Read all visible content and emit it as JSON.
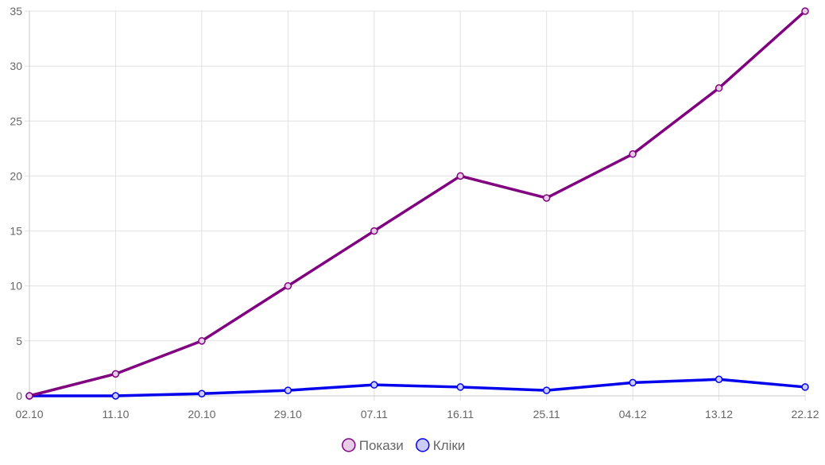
{
  "chart_data": {
    "type": "line",
    "categories": [
      "02.10",
      "11.10",
      "20.10",
      "29.10",
      "07.11",
      "16.11",
      "25.11",
      "04.12",
      "13.12",
      "22.12"
    ],
    "series": [
      {
        "name": "Покази",
        "values": [
          0,
          2,
          5,
          10,
          15,
          20,
          18,
          22,
          28,
          35
        ],
        "color": "#800080",
        "fill": "#e6cce6"
      },
      {
        "name": "Кліки",
        "values": [
          0,
          0,
          0.2,
          0.5,
          1,
          0.8,
          0.5,
          1.2,
          1.5,
          0.8
        ],
        "color": "#0000ee",
        "fill": "#ccccfa"
      }
    ],
    "ylim": [
      0,
      35
    ],
    "yticks": [
      0,
      5,
      10,
      15,
      20,
      25,
      30,
      35
    ],
    "grid": true,
    "legend_position": "bottom-center",
    "title": "",
    "xlabel": "",
    "ylabel": ""
  }
}
